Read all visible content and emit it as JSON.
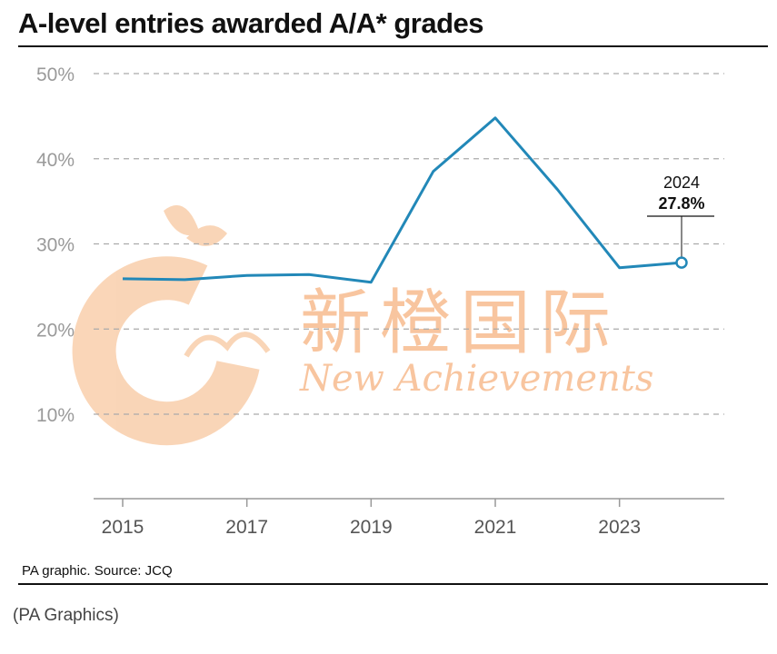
{
  "title": "A-level entries awarded A/A* grades",
  "source": "PA graphic. Source: JCQ",
  "caption": "(PA Graphics)",
  "watermark": {
    "text_cn": "新橙国际",
    "text_en": "New Achievements",
    "color": "#f6b27f"
  },
  "chart_data": {
    "type": "line",
    "x": [
      2015,
      2016,
      2017,
      2018,
      2019,
      2020,
      2021,
      2022,
      2023,
      2024
    ],
    "series": [
      {
        "values": [
          25.9,
          25.8,
          26.3,
          26.4,
          25.5,
          38.5,
          44.8,
          36.4,
          27.2,
          27.8
        ],
        "color": "#2288b8"
      }
    ],
    "xticks": [
      2015,
      2017,
      2019,
      2021,
      2023
    ],
    "xtick_labels": [
      "2015",
      "2017",
      "2019",
      "2021",
      "2023"
    ],
    "yticks": [
      10,
      20,
      30,
      40,
      50
    ],
    "ytick_labels": [
      "10%",
      "20%",
      "30%",
      "40%",
      "50%"
    ],
    "ylim": [
      0,
      50
    ],
    "xlim": [
      2015,
      2024
    ],
    "grid": "horizontal-dashed",
    "annotation": {
      "x": 2024,
      "y": 27.8,
      "label_year": "2024",
      "label_value": "27.8%"
    }
  }
}
